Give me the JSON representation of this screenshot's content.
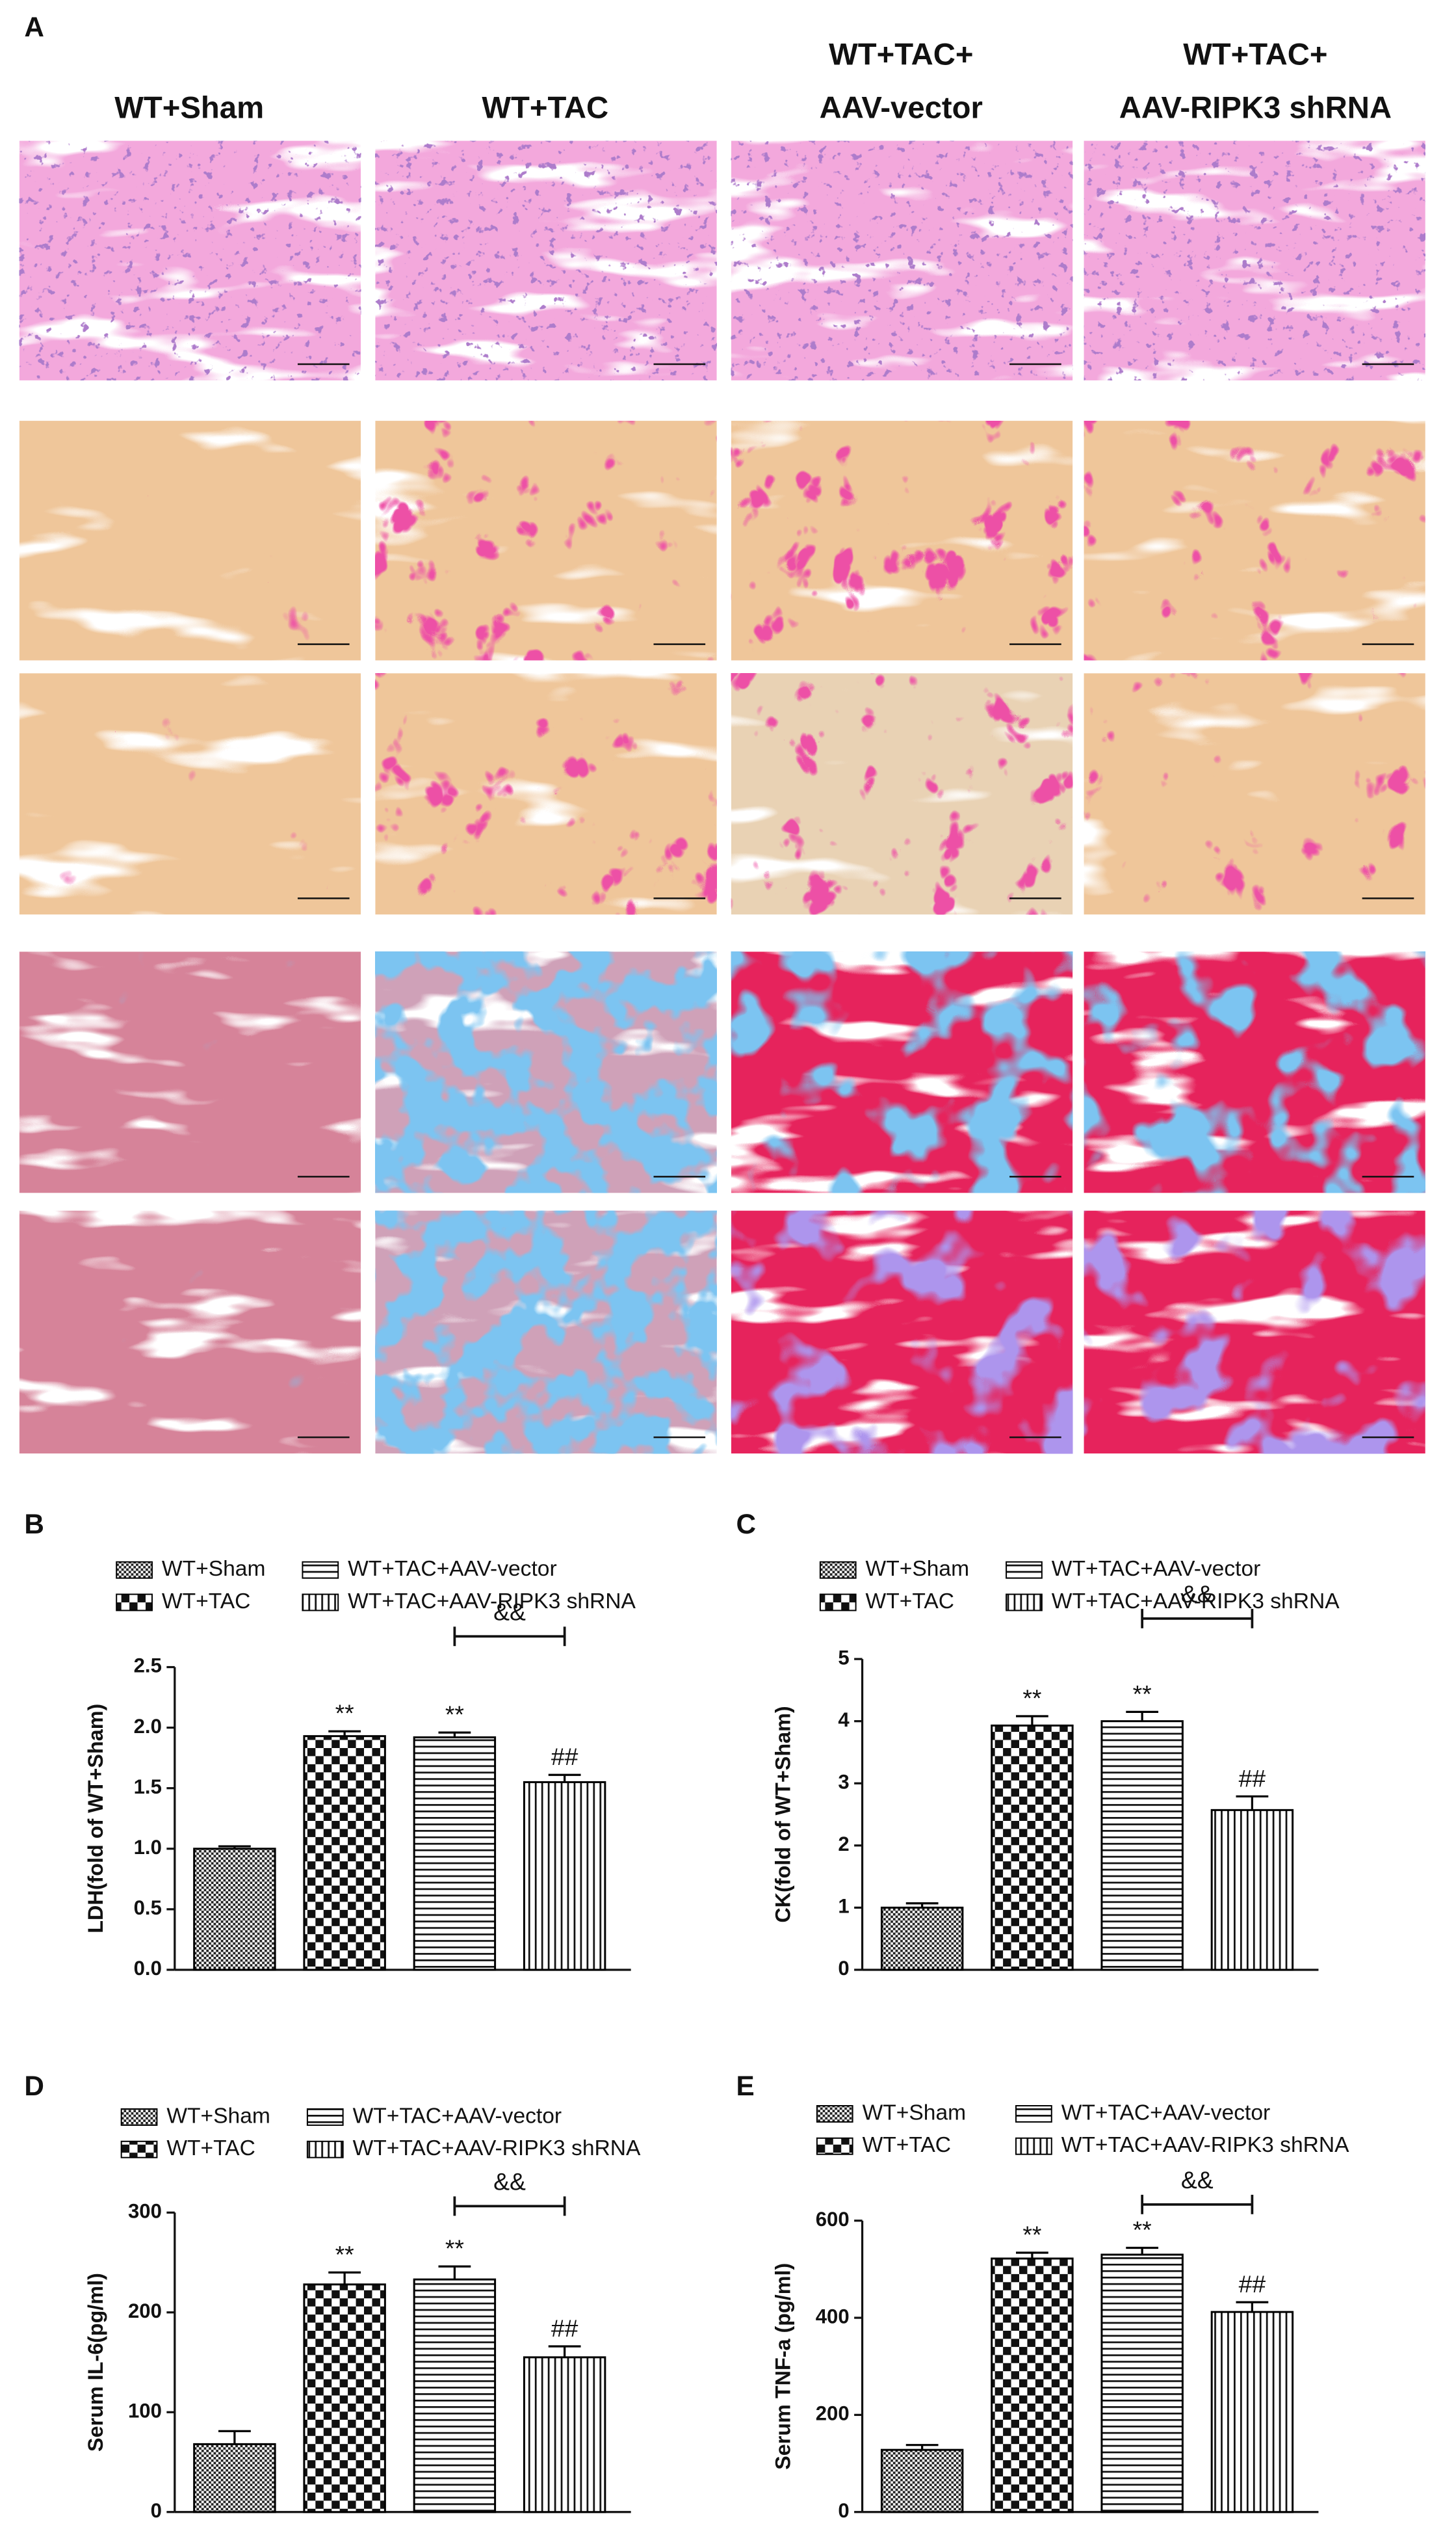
{
  "panel_a": {
    "label": "A",
    "columns": [
      {
        "lines": [
          "WT+Sham"
        ]
      },
      {
        "lines": [
          "WT+TAC"
        ]
      },
      {
        "lines": [
          "WT+TAC+",
          "AAV-vector"
        ]
      },
      {
        "lines": [
          "WT+TAC+",
          "AAV-RIPK3 shRNA"
        ]
      }
    ]
  },
  "chart_data": [
    {
      "type": "bar",
      "panel": "B",
      "ylabel": "LDH(fold of WT+Sham)",
      "ylim": [
        0,
        2.5
      ],
      "yticks": [
        {
          "value": 0,
          "label": "0.0"
        },
        {
          "value": 0.5,
          "label": "0.5"
        },
        {
          "value": 1,
          "label": "1.0"
        },
        {
          "value": 1.5,
          "label": "1.5"
        },
        {
          "value": 2,
          "label": "2.0"
        },
        {
          "value": 2.5,
          "label": "2.5"
        }
      ],
      "series": [
        {
          "name": "WT+Sham",
          "color": "#000000",
          "pattern": "crosshatch",
          "values": [
            1.0
          ],
          "errors": [
            0.02
          ]
        },
        {
          "name": "WT+TAC",
          "color": "#000000",
          "pattern": "checker",
          "values": [
            1.93
          ],
          "errors": [
            0.04
          ],
          "significance": "**"
        },
        {
          "name": "WT+TAC+AAV-vector",
          "color": "#000000",
          "pattern": "horizontal",
          "values": [
            1.92
          ],
          "errors": [
            0.04
          ],
          "significance": "**"
        },
        {
          "name": "WT+TAC+AAV-RIPK3 shRNA",
          "color": "#000000",
          "pattern": "vertical",
          "values": [
            1.55
          ],
          "errors": [
            0.06
          ],
          "significance": "##"
        }
      ],
      "bracket_label": "&&"
    },
    {
      "type": "bar",
      "panel": "C",
      "ylabel": "CK(fold of WT+Sham)",
      "ylim": [
        0,
        5
      ],
      "yticks": [
        0,
        1,
        2,
        3,
        4,
        5
      ],
      "series": [
        {
          "name": "WT+Sham",
          "color": "#000000",
          "pattern": "crosshatch",
          "values": [
            1.0
          ],
          "errors": [
            0.07
          ]
        },
        {
          "name": "WT+TAC",
          "color": "#000000",
          "pattern": "checker",
          "values": [
            3.93
          ],
          "errors": [
            0.15
          ],
          "significance": "**"
        },
        {
          "name": "WT+TAC+AAV-vector",
          "color": "#000000",
          "pattern": "horizontal",
          "values": [
            4.0
          ],
          "errors": [
            0.15
          ],
          "significance": "**"
        },
        {
          "name": "WT+TAC+AAV-RIPK3 shRNA",
          "color": "#000000",
          "pattern": "vertical",
          "values": [
            2.57
          ],
          "errors": [
            0.22
          ],
          "significance": "##"
        }
      ],
      "bracket_label": "&&"
    },
    {
      "type": "bar",
      "panel": "D",
      "ylabel": "Serum IL-6(pg/ml)",
      "ylim": [
        0,
        300
      ],
      "yticks": [
        0,
        100,
        200,
        300
      ],
      "series": [
        {
          "name": "WT+Sham",
          "color": "#000000",
          "pattern": "crosshatch",
          "values": [
            68
          ],
          "errors": [
            13
          ]
        },
        {
          "name": "WT+TAC",
          "color": "#000000",
          "pattern": "checker",
          "values": [
            228
          ],
          "errors": [
            12
          ],
          "significance": "**"
        },
        {
          "name": "WT+TAC+AAV-vector",
          "color": "#000000",
          "pattern": "horizontal",
          "values": [
            233
          ],
          "errors": [
            13
          ],
          "significance": "**"
        },
        {
          "name": "WT+TAC+AAV-RIPK3 shRNA",
          "color": "#000000",
          "pattern": "vertical",
          "values": [
            155
          ],
          "errors": [
            11
          ],
          "significance": "##"
        }
      ],
      "bracket_label": "&&"
    },
    {
      "type": "bar",
      "panel": "E",
      "ylabel": "Serum TNF-a (pg/ml)",
      "ylim": [
        0,
        600
      ],
      "yticks": [
        0,
        200,
        400,
        600
      ],
      "series": [
        {
          "name": "WT+Sham",
          "color": "#000000",
          "pattern": "crosshatch",
          "values": [
            128
          ],
          "errors": [
            10
          ]
        },
        {
          "name": "WT+TAC",
          "color": "#000000",
          "pattern": "checker",
          "values": [
            522
          ],
          "errors": [
            12
          ],
          "significance": "**"
        },
        {
          "name": "WT+TAC+AAV-vector",
          "color": "#000000",
          "pattern": "horizontal",
          "values": [
            530
          ],
          "errors": [
            14
          ],
          "significance": "**"
        },
        {
          "name": "WT+TAC+AAV-RIPK3 shRNA",
          "color": "#000000",
          "pattern": "vertical",
          "values": [
            412
          ],
          "errors": [
            20
          ],
          "significance": "##"
        }
      ],
      "bracket_label": "&&"
    }
  ]
}
